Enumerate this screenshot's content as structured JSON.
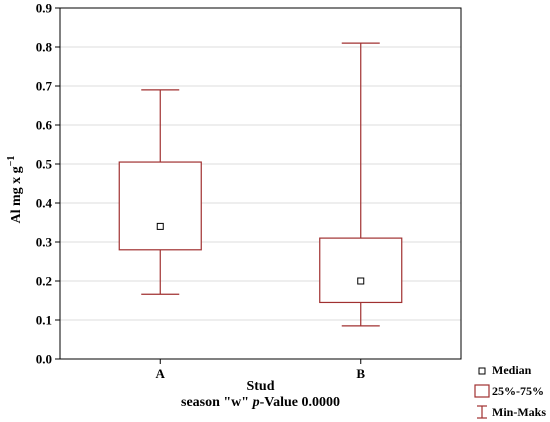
{
  "chart_data": {
    "type": "boxplot",
    "ylabel": "Al mg x g",
    "ylabel_superscript": "−1",
    "xlabel": "Stud",
    "subtitle_prefix": "season \"w\" ",
    "subtitle_italic": "p",
    "subtitle_suffix": "-Value 0.0000",
    "ylim": [
      0,
      0.9
    ],
    "yticks": [
      0.0,
      0.1,
      0.2,
      0.3,
      0.4,
      0.5,
      0.6,
      0.7,
      0.8,
      0.9
    ],
    "ytick_labels": [
      "0.0",
      "0.1",
      "0.2",
      "0.3",
      "0.4",
      "0.5",
      "0.6",
      "0.7",
      "0.8",
      "0.9"
    ],
    "grid": true,
    "categories": [
      "A",
      "B"
    ],
    "boxes": [
      {
        "category": "A",
        "min": 0.166,
        "q1": 0.28,
        "median": 0.34,
        "q3": 0.505,
        "max": 0.69
      },
      {
        "category": "B",
        "min": 0.085,
        "q1": 0.145,
        "median": 0.2,
        "q3": 0.31,
        "max": 0.81
      }
    ],
    "legend": {
      "position": "bottom-right",
      "items": [
        {
          "symbol": "median",
          "label": "Median"
        },
        {
          "symbol": "box",
          "label": "25%-75%"
        },
        {
          "symbol": "whisker",
          "label": "Min-Maks"
        }
      ]
    },
    "colors": {
      "box": "#a03030",
      "grid": "#dddddd",
      "axis": "#000000"
    }
  }
}
